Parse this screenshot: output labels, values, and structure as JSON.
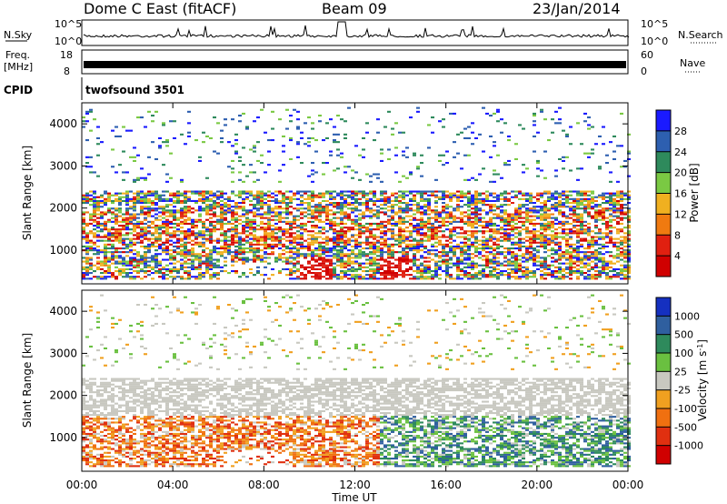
{
  "header": {
    "station": "Dome C East (fitACF)",
    "beam": "Beam 09",
    "date": "23/Jan/2014"
  },
  "panels": {
    "nsky_label": "N.Sky",
    "nsearch_label": "N.Search",
    "freq_label": "Freq.",
    "freq_unit": "[MHz]",
    "nave_label": "Nave",
    "cpid_label": "CPID",
    "cpid_value": "twofsound 3501",
    "nsky_ticks": [
      "10^5",
      "10^0"
    ],
    "nsearch_ticks": [
      "10^5",
      "10^0"
    ],
    "freq_ticks": [
      "18",
      "8"
    ],
    "nave_ticks": [
      "60",
      "0"
    ]
  },
  "chart_data": [
    {
      "type": "heatmap",
      "name": "power",
      "ylabel": "Slant Range [km]",
      "xlabel": "Time UT",
      "xlim": [
        0,
        24
      ],
      "ylim": [
        200,
        4500
      ],
      "x_ticks": [
        "00:00",
        "04:00",
        "08:00",
        "12:00",
        "16:00",
        "20:00",
        "00:00"
      ],
      "y_ticks": [
        1000,
        2000,
        3000,
        4000
      ],
      "colorbar": {
        "label": "Power [dB]",
        "ticks": [
          "4",
          "8",
          "12",
          "16",
          "20",
          "24",
          "28"
        ],
        "colors": [
          "#1a1aff",
          "#2d5fb0",
          "#2e8a5c",
          "#7ac943",
          "#f0b020",
          "#f07a10",
          "#e02010",
          "#d00000"
        ]
      }
    },
    {
      "type": "heatmap",
      "name": "velocity",
      "ylabel": "Slant Range [km]",
      "xlabel": "Time UT",
      "xlim": [
        0,
        24
      ],
      "ylim": [
        200,
        4500
      ],
      "x_ticks": [
        "00:00",
        "04:00",
        "08:00",
        "12:00",
        "16:00",
        "20:00",
        "00:00"
      ],
      "y_ticks": [
        1000,
        2000,
        3000,
        4000
      ],
      "colorbar": {
        "label": "Velocity [m s^-1]",
        "ticks": [
          "1000",
          "500",
          "100",
          "25",
          "-25",
          "-100",
          "-500",
          "-1000"
        ],
        "colors": [
          "#1530c0",
          "#2f5f9f",
          "#2e8a5c",
          "#6ac040",
          "#c8c8c0",
          "#f0a020",
          "#f07010",
          "#e03010",
          "#d00000"
        ]
      }
    }
  ]
}
